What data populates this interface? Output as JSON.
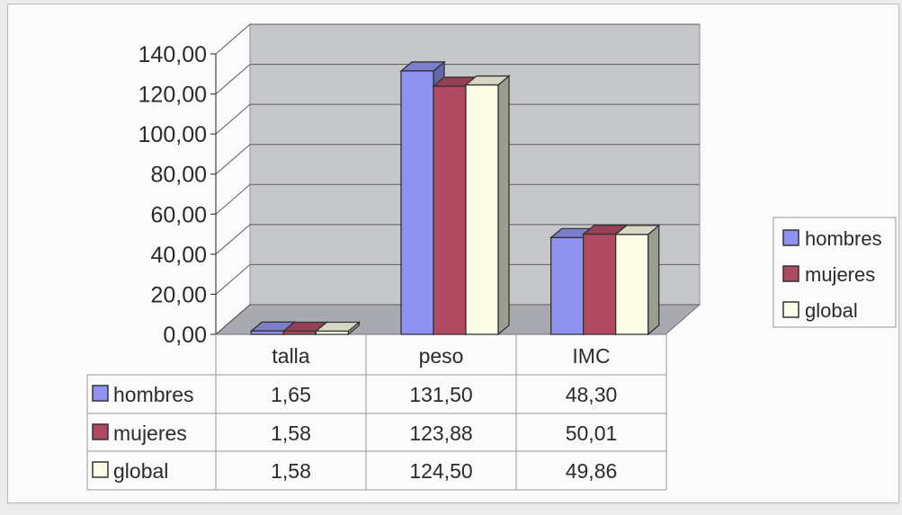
{
  "chart_data": {
    "type": "bar",
    "categories": [
      "talla",
      "peso",
      "IMC"
    ],
    "series": [
      {
        "name": "hombres",
        "values": [
          1.65,
          131.5,
          48.3
        ],
        "display": [
          "1,65",
          "131,50",
          "48,30"
        ],
        "color": "#8f92ee"
      },
      {
        "name": "mujeres",
        "values": [
          1.58,
          123.88,
          50.01
        ],
        "display": [
          "1,58",
          "123,88",
          "50,01"
        ],
        "color": "#b04a62"
      },
      {
        "name": "global",
        "values": [
          1.58,
          124.5,
          49.86
        ],
        "display": [
          "1,58",
          "124,50",
          "49,86"
        ],
        "color": "#fcfbe6"
      }
    ],
    "yticks": [
      "0,00",
      "20,00",
      "40,00",
      "60,00",
      "80,00",
      "100,00",
      "120,00",
      "140,00"
    ],
    "ylim": [
      0,
      140
    ],
    "grid": true,
    "legend_position": "right",
    "data_table": true,
    "colors": {
      "wall": "#c6c7cb",
      "floor": "#a9aab0",
      "grid": "#5a5a5e"
    }
  }
}
